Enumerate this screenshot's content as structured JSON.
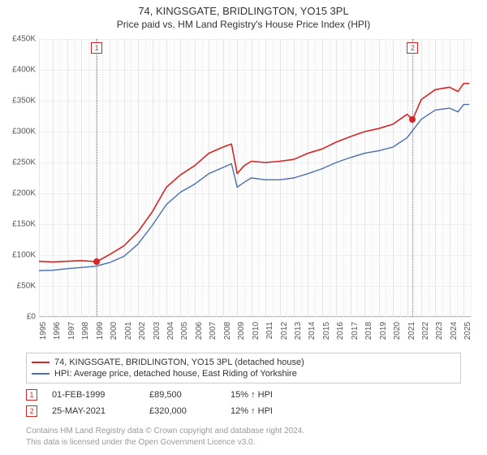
{
  "title": "74, KINGSGATE, BRIDLINGTON, YO15 3PL",
  "subtitle": "Price paid vs. HM Land Registry's House Price Index (HPI)",
  "chart": {
    "type": "line",
    "background_color": "#fcfcfc",
    "grid_color": "#eeeeee",
    "minor_grid_color": "#f2f2f2",
    "axis_color": "#bbbbbb",
    "xlim": [
      1995,
      2025.5
    ],
    "ylim": [
      0,
      450000
    ],
    "ytick_step": 50000,
    "yticks": [
      {
        "v": 0,
        "label": "£0"
      },
      {
        "v": 50000,
        "label": "£50K"
      },
      {
        "v": 100000,
        "label": "£100K"
      },
      {
        "v": 150000,
        "label": "£150K"
      },
      {
        "v": 200000,
        "label": "£200K"
      },
      {
        "v": 250000,
        "label": "£250K"
      },
      {
        "v": 300000,
        "label": "£300K"
      },
      {
        "v": 350000,
        "label": "£350K"
      },
      {
        "v": 400000,
        "label": "£400K"
      },
      {
        "v": 450000,
        "label": "£450K"
      }
    ],
    "xticks": [
      1995,
      1996,
      1997,
      1998,
      1999,
      2000,
      2001,
      2002,
      2003,
      2004,
      2005,
      2006,
      2007,
      2008,
      2009,
      2010,
      2011,
      2012,
      2013,
      2014,
      2015,
      2016,
      2017,
      2018,
      2019,
      2020,
      2021,
      2022,
      2023,
      2024,
      2025
    ],
    "series": [
      {
        "key": "property",
        "label": "74, KINGSGATE, BRIDLINGTON, YO15 3PL (detached house)",
        "color": "#d82424",
        "line_width": 1.6,
        "data": [
          [
            1995,
            90000
          ],
          [
            1996,
            89000
          ],
          [
            1997,
            90000
          ],
          [
            1998,
            91000
          ],
          [
            1999.08,
            89500
          ],
          [
            2000,
            101000
          ],
          [
            2001,
            115000
          ],
          [
            2002,
            138000
          ],
          [
            2003,
            170000
          ],
          [
            2004,
            210000
          ],
          [
            2005,
            230000
          ],
          [
            2006,
            245000
          ],
          [
            2007,
            265000
          ],
          [
            2008,
            275000
          ],
          [
            2008.6,
            280000
          ],
          [
            2009,
            232000
          ],
          [
            2009.5,
            245000
          ],
          [
            2010,
            252000
          ],
          [
            2011,
            250000
          ],
          [
            2012,
            252000
          ],
          [
            2013,
            255000
          ],
          [
            2014,
            265000
          ],
          [
            2015,
            272000
          ],
          [
            2016,
            283000
          ],
          [
            2017,
            292000
          ],
          [
            2018,
            300000
          ],
          [
            2019,
            305000
          ],
          [
            2020,
            312000
          ],
          [
            2021,
            328000
          ],
          [
            2021.4,
            320000
          ],
          [
            2022,
            352000
          ],
          [
            2023,
            368000
          ],
          [
            2024,
            372000
          ],
          [
            2024.6,
            365000
          ],
          [
            2025,
            378000
          ],
          [
            2025.4,
            378000
          ]
        ]
      },
      {
        "key": "hpi",
        "label": "HPI: Average price, detached house, East Riding of Yorkshire",
        "color": "#4a6fb3",
        "line_width": 1.4,
        "data": [
          [
            1995,
            75000
          ],
          [
            1996,
            75500
          ],
          [
            1997,
            78000
          ],
          [
            1998,
            80000
          ],
          [
            1999,
            82000
          ],
          [
            2000,
            88000
          ],
          [
            2001,
            98000
          ],
          [
            2002,
            118000
          ],
          [
            2003,
            148000
          ],
          [
            2004,
            182000
          ],
          [
            2005,
            202000
          ],
          [
            2006,
            215000
          ],
          [
            2007,
            232000
          ],
          [
            2008,
            242000
          ],
          [
            2008.6,
            248000
          ],
          [
            2009,
            210000
          ],
          [
            2009.5,
            218000
          ],
          [
            2010,
            225000
          ],
          [
            2011,
            222000
          ],
          [
            2012,
            222000
          ],
          [
            2013,
            225000
          ],
          [
            2014,
            232000
          ],
          [
            2015,
            240000
          ],
          [
            2016,
            250000
          ],
          [
            2017,
            258000
          ],
          [
            2018,
            265000
          ],
          [
            2019,
            269000
          ],
          [
            2020,
            275000
          ],
          [
            2021,
            290000
          ],
          [
            2022,
            320000
          ],
          [
            2023,
            335000
          ],
          [
            2024,
            338000
          ],
          [
            2024.6,
            332000
          ],
          [
            2025,
            344000
          ],
          [
            2025.4,
            344000
          ]
        ]
      }
    ],
    "reference_lines": [
      {
        "idx": "1",
        "x": 1999.08,
        "color": "#d82424"
      },
      {
        "idx": "2",
        "x": 2021.4,
        "color": "#d82424"
      }
    ],
    "markers": [
      {
        "x": 1999.08,
        "y": 89500,
        "color": "#d82424"
      },
      {
        "x": 2021.4,
        "y": 320000,
        "color": "#d82424"
      }
    ]
  },
  "legend": {
    "items": [
      {
        "color": "#d82424",
        "label": "74, KINGSGATE, BRIDLINGTON, YO15 3PL (detached house)"
      },
      {
        "color": "#4a6fb3",
        "label": "HPI: Average price, detached house, East Riding of Yorkshire"
      }
    ]
  },
  "sales": [
    {
      "idx": "1",
      "color": "#d82424",
      "date": "01-FEB-1999",
      "price": "£89,500",
      "pct": "15% ↑ HPI"
    },
    {
      "idx": "2",
      "color": "#d82424",
      "date": "25-MAY-2021",
      "price": "£320,000",
      "pct": "12% ↑ HPI"
    }
  ],
  "attribution": {
    "line1": "Contains HM Land Registry data © Crown copyright and database right 2024.",
    "line2": "This data is licensed under the Open Government Licence v3.0."
  }
}
